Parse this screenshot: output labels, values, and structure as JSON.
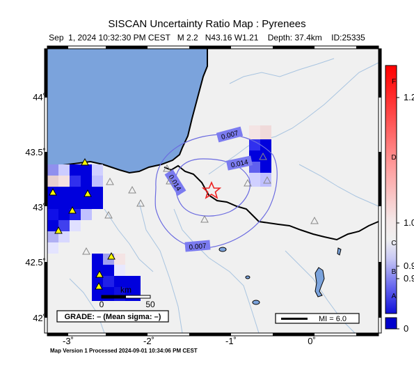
{
  "title": "SISCAN Uncertainty Ratio Map : Pyrenees",
  "subtitle": "Sep  1, 2024 10:32:30 PM CEST   M 2.2   N43.16 W1.21    Depth: 37.4km    ID:25335",
  "footer": "Map Version 1 Processed 2024-09-01 10:34:06 PM CEST",
  "axes": {
    "lat_ticks": [
      "44˚",
      "43.5˚",
      "43˚",
      "42.5˚",
      "42˚"
    ],
    "lon_ticks": [
      "-3˚",
      "-2˚",
      "-1˚",
      "0˚"
    ]
  },
  "contours": [
    {
      "label": "0.007"
    },
    {
      "label": "0.014"
    },
    {
      "label": "0.014"
    },
    {
      "label": "0.007"
    }
  ],
  "scalebar": {
    "unit": "km",
    "min": "0",
    "max": "50"
  },
  "grade_box": "GRADE: – (Mean sigma: –)",
  "mi_box": "MI = 6.0",
  "colorbar": {
    "grades": [
      "F",
      "D",
      "C",
      "B",
      "A"
    ],
    "values": [
      "1.2",
      "1.0",
      "0.9",
      "0.9",
      "0"
    ],
    "colors": {
      "top": "#ff0000",
      "bottom": "#0000cc",
      "mid": "#f2f2f2"
    }
  },
  "epicenter": {
    "lat": 43.16,
    "lon": -1.21,
    "marker": "star-icon"
  },
  "colors": {
    "sea": "#7ba3dc",
    "land": "#f0f0f0",
    "contour": "#6a6ae0",
    "rivers": "#a8c4e0"
  }
}
